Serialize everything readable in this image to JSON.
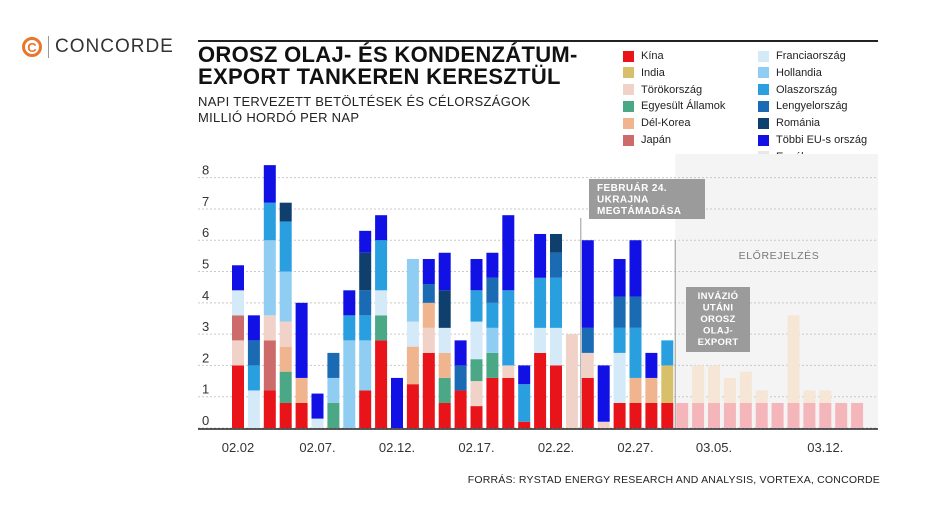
{
  "brand": {
    "logo_letter": "C",
    "name": "CONCORDE",
    "accent_color": "#e8762d"
  },
  "title_lines": [
    "OROSZ OLAJ- ÉS KONDENZÁTUM-",
    "EXPORT TANKEREN KERESZTÜL"
  ],
  "subtitle_lines": [
    "NAPI TERVEZETT BETÖLTÉSEK ÉS CÉLORSZÁGOK",
    "MILLIÓ HORDÓ PER NAP"
  ],
  "source": "FORRÁS: RYSTAD ENERGY RESEARCH AND ANALYSIS, VORTEXA, CONCORDE",
  "annotations": {
    "invasion": [
      "FEBRUÁR 24.",
      "UKRAJNA",
      "MEGTÁMADÁSA"
    ],
    "forecast": "ELŐREJELZÉS",
    "post_invasion": [
      "INVÁZIÓ",
      "UTÁNI",
      "OROSZ",
      "OLAJ-",
      "EXPORT"
    ]
  },
  "chart_data": {
    "type": "bar",
    "stacked": true,
    "ylim": [
      0,
      8.5
    ],
    "yticks": [
      0,
      1,
      2,
      3,
      4,
      5,
      6,
      7,
      8
    ],
    "grid": true,
    "legend_position": "top-right",
    "xtick_labels": [
      "02.02",
      "02.07.",
      "02.12.",
      "02.17.",
      "02.22.",
      "02.27.",
      "03.05.",
      "03.12."
    ],
    "xtick_category_index": [
      0,
      5,
      10,
      15,
      20,
      25,
      30,
      37
    ],
    "series_colors": {
      "Kína": "#e8141a",
      "India": "#d8bf6a",
      "Törökország": "#f1d2c8",
      "Egyesült Államok": "#4aa886",
      "Dél-Korea": "#f0b48e",
      "Japán": "#cd6b6b",
      "Franciaország": "#d4eaf8",
      "Hollandia": "#8fcdf2",
      "Olaszország": "#2a9fe0",
      "Lengyelország": "#1a6bb3",
      "Románia": "#0f3f6d",
      "Többi EU-s ország": "#1111e6",
      "Egyéb": "#e8e8e8"
    },
    "legend_col1": [
      "Kína",
      "India",
      "Törökország",
      "Egyesült Államok",
      "Dél-Korea",
      "Japán"
    ],
    "legend_col2": [
      "Franciaország",
      "Hollandia",
      "Olaszország",
      "Lengyelország",
      "Románia",
      "Többi EU-s ország",
      "Egyéb"
    ],
    "bars": [
      {
        "category": "02.02",
        "segments": [
          [
            "Kína",
            2.0
          ],
          [
            "Törökország",
            0.8
          ],
          [
            "Japán",
            0.8
          ],
          [
            "Franciaország",
            0.8
          ],
          [
            "Többi EU-s ország",
            0.8
          ]
        ]
      },
      {
        "category": "02.03",
        "segments": [
          [
            "Franciaország",
            1.2
          ],
          [
            "Olaszország",
            0.8
          ],
          [
            "Lengyelország",
            0.8
          ],
          [
            "Többi EU-s ország",
            0.8
          ]
        ]
      },
      {
        "category": "02.04",
        "segments": [
          [
            "Kína",
            1.2
          ],
          [
            "Japán",
            1.6
          ],
          [
            "Törökország",
            0.8
          ],
          [
            "Hollandia",
            2.4
          ],
          [
            "Olaszország",
            1.2
          ],
          [
            "Többi EU-s ország",
            1.2
          ]
        ]
      },
      {
        "category": "02.05",
        "segments": [
          [
            "Kína",
            0.8
          ],
          [
            "Egyesült Államok",
            1.0
          ],
          [
            "Dél-Korea",
            0.8
          ],
          [
            "Törökország",
            0.8
          ],
          [
            "Hollandia",
            1.6
          ],
          [
            "Olaszország",
            1.6
          ],
          [
            "Románia",
            0.6
          ]
        ]
      },
      {
        "category": "02.06",
        "segments": [
          [
            "Kína",
            0.8
          ],
          [
            "Dél-Korea",
            0.8
          ],
          [
            "Többi EU-s ország",
            2.4
          ]
        ]
      },
      {
        "category": "02.07",
        "segments": [
          [
            "Franciaország",
            0.3
          ],
          [
            "Többi EU-s ország",
            0.8
          ]
        ]
      },
      {
        "category": "02.08",
        "segments": [
          [
            "Egyesült Államok",
            0.8
          ],
          [
            "Hollandia",
            0.8
          ],
          [
            "Olaszország",
            0.0
          ],
          [
            "Lengyelország",
            0.8
          ]
        ]
      },
      {
        "category": "02.09",
        "segments": [
          [
            "Hollandia",
            2.8
          ],
          [
            "Olaszország",
            0.8
          ],
          [
            "Többi EU-s ország",
            0.8
          ]
        ]
      },
      {
        "category": "02.10",
        "segments": [
          [
            "Kína",
            1.2
          ],
          [
            "Hollandia",
            1.6
          ],
          [
            "Olaszország",
            0.8
          ],
          [
            "Lengyelország",
            0.8
          ],
          [
            "Románia",
            1.2
          ],
          [
            "Többi EU-s ország",
            0.7
          ]
        ]
      },
      {
        "category": "02.11",
        "segments": [
          [
            "Kína",
            2.8
          ],
          [
            "Egyesült Államok",
            0.8
          ],
          [
            "Franciaország",
            0.8
          ],
          [
            "Olaszország",
            1.6
          ],
          [
            "Többi EU-s ország",
            0.8
          ]
        ]
      },
      {
        "category": "02.12",
        "segments": [
          [
            "Többi EU-s ország",
            1.6
          ]
        ]
      },
      {
        "category": "02.13",
        "segments": [
          [
            "Kína",
            1.4
          ],
          [
            "Dél-Korea",
            1.2
          ],
          [
            "Franciaország",
            0.8
          ],
          [
            "Hollandia",
            2.0
          ]
        ]
      },
      {
        "category": "02.14",
        "segments": [
          [
            "Kína",
            2.4
          ],
          [
            "Törökország",
            0.8
          ],
          [
            "Dél-Korea",
            0.8
          ],
          [
            "Lengyelország",
            0.6
          ],
          [
            "Többi EU-s ország",
            0.8
          ]
        ]
      },
      {
        "category": "02.15",
        "segments": [
          [
            "Kína",
            0.8
          ],
          [
            "Egyesült Államok",
            0.8
          ],
          [
            "Dél-Korea",
            0.8
          ],
          [
            "Franciaország",
            0.8
          ],
          [
            "Románia",
            1.2
          ],
          [
            "Többi EU-s ország",
            1.2
          ]
        ]
      },
      {
        "category": "02.16",
        "segments": [
          [
            "Kína",
            1.2
          ],
          [
            "Lengyelország",
            0.8
          ],
          [
            "Többi EU-s ország",
            0.8
          ]
        ]
      },
      {
        "category": "02.17",
        "segments": [
          [
            "Kína",
            0.7
          ],
          [
            "Törökország",
            0.8
          ],
          [
            "Egyesült Államok",
            0.7
          ],
          [
            "Franciaország",
            1.2
          ],
          [
            "Olaszország",
            1.0
          ],
          [
            "Többi EU-s ország",
            1.0
          ]
        ]
      },
      {
        "category": "02.18",
        "segments": [
          [
            "Kína",
            1.6
          ],
          [
            "Egyesült Államok",
            0.8
          ],
          [
            "Hollandia",
            0.8
          ],
          [
            "Olaszország",
            0.8
          ],
          [
            "Lengyelország",
            0.8
          ],
          [
            "Többi EU-s ország",
            0.8
          ]
        ]
      },
      {
        "category": "02.19",
        "segments": [
          [
            "Kína",
            1.6
          ],
          [
            "Törökország",
            0.4
          ],
          [
            "Olaszország",
            2.4
          ],
          [
            "Többi EU-s ország",
            2.4
          ]
        ]
      },
      {
        "category": "02.20",
        "segments": [
          [
            "Kína",
            0.2
          ],
          [
            "Olaszország",
            1.2
          ],
          [
            "Többi EU-s ország",
            0.6
          ]
        ]
      },
      {
        "category": "02.21",
        "segments": [
          [
            "Kína",
            2.4
          ],
          [
            "Franciaország",
            0.8
          ],
          [
            "Olaszország",
            1.6
          ],
          [
            "Többi EU-s ország",
            1.4
          ]
        ]
      },
      {
        "category": "02.22",
        "segments": [
          [
            "Kína",
            2.0
          ],
          [
            "Franciaország",
            1.2
          ],
          [
            "Olaszország",
            1.6
          ],
          [
            "Lengyelország",
            0.8
          ],
          [
            "Románia",
            0.6
          ]
        ]
      },
      {
        "category": "02.23",
        "segments": [
          [
            "Törökország",
            3.0
          ]
        ]
      },
      {
        "category": "02.24",
        "segments": [
          [
            "Kína",
            1.6
          ],
          [
            "Törökország",
            0.8
          ],
          [
            "Lengyelország",
            0.8
          ],
          [
            "Többi EU-s ország",
            2.8
          ]
        ]
      },
      {
        "category": "02.25",
        "segments": [
          [
            "Törökország",
            0.2
          ],
          [
            "Többi EU-s ország",
            1.8
          ]
        ]
      },
      {
        "category": "02.26",
        "segments": [
          [
            "Kína",
            0.8
          ],
          [
            "Franciaország",
            1.6
          ],
          [
            "Olaszország",
            0.8
          ],
          [
            "Lengyelország",
            1.0
          ],
          [
            "Többi EU-s ország",
            1.2
          ]
        ]
      },
      {
        "category": "02.27",
        "segments": [
          [
            "Kína",
            0.8
          ],
          [
            "Dél-Korea",
            0.8
          ],
          [
            "Olaszország",
            1.6
          ],
          [
            "Lengyelország",
            1.0
          ],
          [
            "Többi EU-s ország",
            1.8
          ]
        ]
      },
      {
        "category": "02.28",
        "segments": [
          [
            "Kína",
            0.8
          ],
          [
            "Dél-Korea",
            0.8
          ],
          [
            "Lengyelország",
            0.0
          ],
          [
            "Többi EU-s ország",
            0.8
          ]
        ]
      },
      {
        "category": "03.01",
        "segments": [
          [
            "Kína",
            0.8
          ],
          [
            "India",
            1.2
          ],
          [
            "Olaszország",
            0.8
          ]
        ]
      }
    ],
    "forecast": [
      0.8,
      2.0,
      2.0,
      1.6,
      1.8,
      1.2,
      0.8,
      3.6,
      1.2,
      1.2,
      0.8,
      0.8
    ],
    "forecast_base": 0.8,
    "forecast_colors": {
      "base": "#f5b6bb",
      "top": "#f5e6d6"
    }
  }
}
